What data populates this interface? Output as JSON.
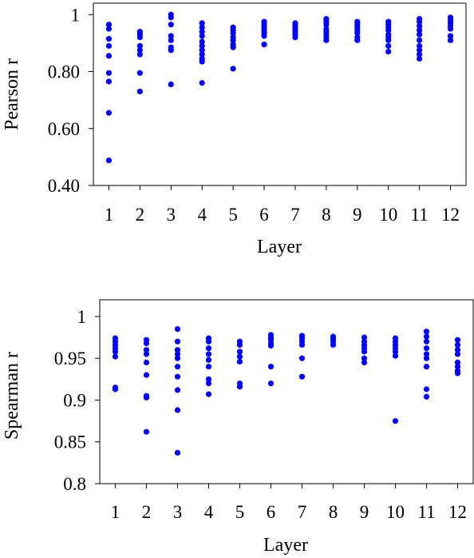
{
  "chart_data": [
    {
      "type": "scatter",
      "title": "",
      "xlabel": "Layer",
      "ylabel": "Pearson r",
      "xlim": [
        0.5,
        12.5
      ],
      "ylim": [
        0.4,
        1.04
      ],
      "x_ticks": [
        1,
        2,
        3,
        4,
        5,
        6,
        7,
        8,
        9,
        10,
        11,
        12
      ],
      "x_tick_labels": [
        "1",
        "2",
        "3",
        "4",
        "5",
        "6",
        "7",
        "8",
        "9",
        "10",
        "11",
        "12"
      ],
      "y_ticks": [
        0.4,
        0.6,
        0.8,
        1.0
      ],
      "y_tick_labels": [
        "0.40",
        "0.60",
        "0.80",
        "1"
      ],
      "grid": false,
      "color": "#0000ff",
      "points": [
        {
          "layer": 1,
          "values": [
            0.965,
            0.95,
            0.915,
            0.89,
            0.855,
            0.795,
            0.765,
            0.655,
            0.488
          ]
        },
        {
          "layer": 2,
          "values": [
            0.94,
            0.93,
            0.92,
            0.89,
            0.875,
            0.86,
            0.795,
            0.73
          ]
        },
        {
          "layer": 3,
          "values": [
            1.0,
            0.99,
            0.965,
            0.925,
            0.91,
            0.885,
            0.875,
            0.755
          ]
        },
        {
          "layer": 4,
          "values": [
            0.97,
            0.955,
            0.94,
            0.925,
            0.905,
            0.89,
            0.875,
            0.86,
            0.845,
            0.835,
            0.76
          ]
        },
        {
          "layer": 5,
          "values": [
            0.955,
            0.945,
            0.935,
            0.92,
            0.91,
            0.895,
            0.885,
            0.81
          ]
        },
        {
          "layer": 6,
          "values": [
            0.975,
            0.965,
            0.955,
            0.945,
            0.935,
            0.925,
            0.895
          ]
        },
        {
          "layer": 7,
          "values": [
            0.97,
            0.96,
            0.95,
            0.94,
            0.93,
            0.92
          ]
        },
        {
          "layer": 8,
          "values": [
            0.985,
            0.975,
            0.965,
            0.95,
            0.94,
            0.93,
            0.92,
            0.91
          ]
        },
        {
          "layer": 9,
          "values": [
            0.975,
            0.965,
            0.955,
            0.945,
            0.935,
            0.92,
            0.91
          ]
        },
        {
          "layer": 10,
          "values": [
            0.975,
            0.965,
            0.955,
            0.945,
            0.93,
            0.92,
            0.91,
            0.89,
            0.87
          ]
        },
        {
          "layer": 11,
          "values": [
            0.985,
            0.975,
            0.96,
            0.945,
            0.93,
            0.91,
            0.89,
            0.875,
            0.86,
            0.845
          ]
        },
        {
          "layer": 12,
          "values": [
            0.99,
            0.98,
            0.97,
            0.96,
            0.95,
            0.925,
            0.91
          ]
        }
      ]
    },
    {
      "type": "scatter",
      "title": "",
      "xlabel": "Layer",
      "ylabel": "Spearman r",
      "xlim": [
        0.5,
        12.5
      ],
      "ylim": [
        0.8,
        1.02
      ],
      "x_ticks": [
        1,
        2,
        3,
        4,
        5,
        6,
        7,
        8,
        9,
        10,
        11,
        12
      ],
      "x_tick_labels": [
        "1",
        "2",
        "3",
        "4",
        "5",
        "6",
        "7",
        "8",
        "9",
        "10",
        "11",
        "12"
      ],
      "y_ticks": [
        0.8,
        0.85,
        0.9,
        0.95,
        1.0
      ],
      "y_tick_labels": [
        "0.8",
        "0.85",
        "0.9",
        "0.95",
        "1"
      ],
      "grid": false,
      "color": "#0000ff",
      "points": [
        {
          "layer": 1,
          "values": [
            0.974,
            0.97,
            0.966,
            0.962,
            0.958,
            0.952,
            0.915,
            0.913
          ]
        },
        {
          "layer": 2,
          "values": [
            0.972,
            0.968,
            0.96,
            0.955,
            0.945,
            0.93,
            0.905,
            0.903,
            0.862
          ]
        },
        {
          "layer": 3,
          "values": [
            0.985,
            0.97,
            0.96,
            0.955,
            0.95,
            0.94,
            0.928,
            0.912,
            0.888,
            0.837
          ]
        },
        {
          "layer": 4,
          "values": [
            0.974,
            0.97,
            0.962,
            0.955,
            0.948,
            0.94,
            0.925,
            0.92,
            0.907
          ]
        },
        {
          "layer": 5,
          "values": [
            0.97,
            0.966,
            0.958,
            0.952,
            0.946,
            0.92,
            0.916
          ]
        },
        {
          "layer": 6,
          "values": [
            0.978,
            0.975,
            0.972,
            0.968,
            0.965,
            0.94,
            0.92
          ]
        },
        {
          "layer": 7,
          "values": [
            0.977,
            0.974,
            0.97,
            0.966,
            0.95,
            0.928
          ]
        },
        {
          "layer": 8,
          "values": [
            0.976,
            0.973,
            0.97,
            0.966
          ]
        },
        {
          "layer": 9,
          "values": [
            0.975,
            0.97,
            0.966,
            0.962,
            0.958,
            0.95,
            0.945
          ]
        },
        {
          "layer": 10,
          "values": [
            0.974,
            0.97,
            0.966,
            0.962,
            0.958,
            0.953,
            0.875
          ]
        },
        {
          "layer": 11,
          "values": [
            0.982,
            0.976,
            0.97,
            0.962,
            0.955,
            0.95,
            0.94,
            0.913,
            0.904
          ]
        },
        {
          "layer": 12,
          "values": [
            0.972,
            0.966,
            0.96,
            0.955,
            0.945,
            0.94,
            0.935,
            0.932
          ]
        }
      ]
    }
  ]
}
